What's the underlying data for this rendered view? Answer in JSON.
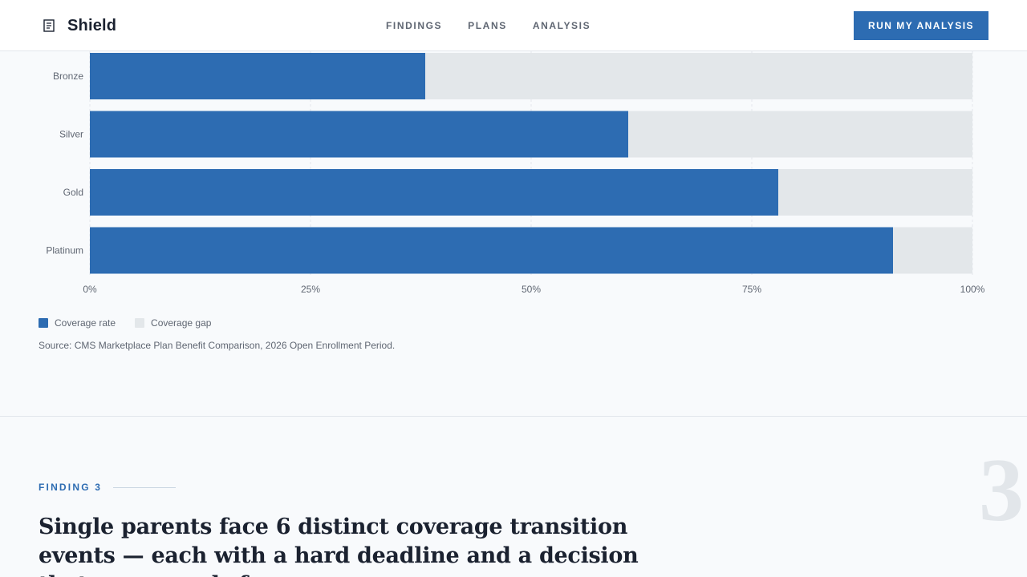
{
  "header": {
    "brand_name": "Shield",
    "brand_icon": "shield-icon",
    "nav": [
      {
        "label": "FINDINGS"
      },
      {
        "label": "PLANS"
      },
      {
        "label": "ANALYSIS"
      }
    ],
    "cta_label": "RUN MY ANALYSIS"
  },
  "colors": {
    "accent": "#2d6cb2",
    "gap": "#e3e7ea",
    "text": "#1b2230",
    "muted": "#5f6672"
  },
  "chart_data": {
    "type": "bar",
    "orientation": "horizontal",
    "stacked": true,
    "categories": [
      "Bronze",
      "Silver",
      "Gold",
      "Platinum"
    ],
    "series": [
      {
        "name": "Coverage rate",
        "values": [
          38,
          61,
          78,
          91
        ],
        "color": "#2d6cb2"
      },
      {
        "name": "Coverage gap",
        "values": [
          62,
          39,
          22,
          9
        ],
        "color": "#e3e7ea"
      }
    ],
    "xlim": [
      0,
      100
    ],
    "xticks": [
      "0%",
      "25%",
      "50%",
      "75%",
      "100%"
    ],
    "grid": true,
    "legend": "bottom-left"
  },
  "legend": {
    "items": [
      {
        "label": "Coverage rate"
      },
      {
        "label": "Coverage gap"
      }
    ]
  },
  "source": "Source: CMS Marketplace Plan Benefit Comparison, 2026 Open Enrollment Period.",
  "finding": {
    "label": "FINDING 3",
    "title": "Single parents face 6 distinct coverage transition events — each with a hard deadline and a decision that compounds f",
    "number": "3"
  }
}
